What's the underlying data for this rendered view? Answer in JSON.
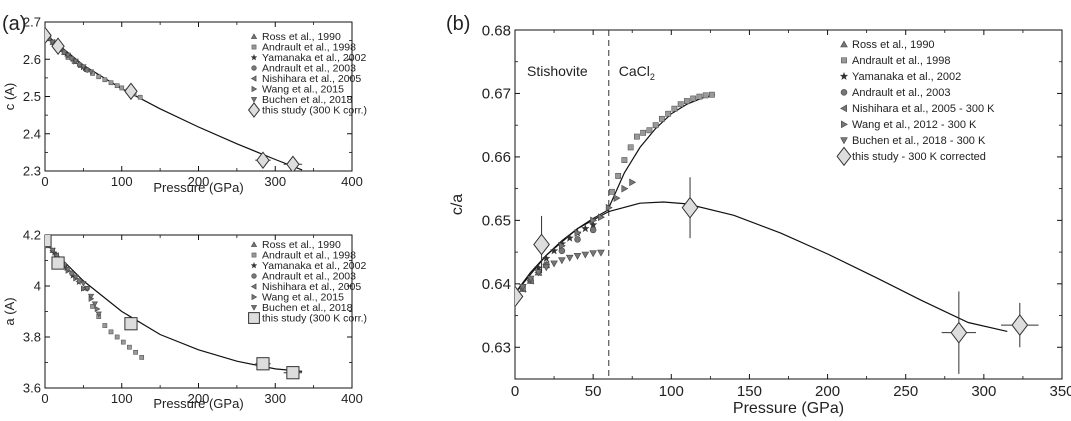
{
  "chart_data": [
    {
      "panel_label": "(a)",
      "type": "scatter",
      "xlabel": "Pressure (GPa)",
      "ylabel": "c (A)",
      "xlim": [
        0,
        400
      ],
      "ylim": [
        2.3,
        2.7
      ],
      "x_ticks": [
        0,
        100,
        200,
        300,
        400
      ],
      "y_ticks": [
        2.3,
        2.4,
        2.5,
        2.6,
        2.7
      ],
      "x_tick_labels": [
        "0",
        "100",
        "200",
        "300",
        "400"
      ],
      "y_tick_labels": [
        "2.3",
        "2.4",
        "2.5",
        "2.6",
        "2.7"
      ],
      "legend_position": "top-right",
      "series": [
        {
          "name": "Ross et al., 1990",
          "marker": "triangle-up",
          "x": [
            0,
            5,
            10,
            15,
            20,
            25
          ],
          "y": [
            2.665,
            2.655,
            2.645,
            2.635,
            2.626,
            2.618
          ]
        },
        {
          "name": "Andrault et al., 1998",
          "marker": "square-small",
          "x": [
            30,
            38,
            46,
            54,
            62,
            70,
            78,
            86,
            94,
            100,
            108,
            116,
            124
          ],
          "y": [
            2.605,
            2.594,
            2.583,
            2.572,
            2.562,
            2.553,
            2.545,
            2.537,
            2.529,
            2.523,
            2.515,
            2.507,
            2.498
          ]
        },
        {
          "name": "Yamanaka et al., 2002",
          "marker": "star",
          "x": [
            12,
            20,
            28,
            36,
            44,
            52
          ],
          "y": [
            2.642,
            2.628,
            2.614,
            2.6,
            2.587,
            2.575
          ]
        },
        {
          "name": "Andrault et al., 2003",
          "marker": "circle",
          "x": [
            15,
            25,
            35,
            45,
            55
          ],
          "y": [
            2.637,
            2.619,
            2.602,
            2.586,
            2.571
          ]
        },
        {
          "name": "Nishihara et al., 2005",
          "marker": "triangle-left",
          "x": [
            5,
            10,
            15,
            20
          ],
          "y": [
            2.655,
            2.646,
            2.637,
            2.628
          ]
        },
        {
          "name": "Wang et al., 2015",
          "marker": "triangle-right",
          "x": [
            20,
            30,
            40,
            50
          ],
          "y": [
            2.627,
            2.61,
            2.594,
            2.579
          ]
        },
        {
          "name": "Buchen et al., 2018",
          "marker": "triangle-down",
          "x": [
            10,
            20,
            30,
            40,
            50,
            60
          ],
          "y": [
            2.646,
            2.628,
            2.611,
            2.595,
            2.58,
            2.566
          ]
        },
        {
          "name": "this study (300 K corr.)",
          "marker": "diamond-open",
          "x": [
            0,
            17,
            112,
            284,
            323
          ],
          "y": [
            2.664,
            2.635,
            2.514,
            2.329,
            2.318
          ],
          "x_err": [
            0,
            3,
            5,
            10,
            12
          ],
          "y_err": [
            0,
            0.008,
            0.012,
            0.018,
            0.015
          ]
        }
      ],
      "fit": {
        "x": [
          0,
          50,
          100,
          150,
          200,
          250,
          300,
          335
        ],
        "y": [
          2.668,
          2.584,
          2.521,
          2.467,
          2.418,
          2.373,
          2.331,
          2.303
        ]
      }
    },
    {
      "type": "scatter",
      "xlabel": "Pressure (GPa)",
      "ylabel": "a (A)",
      "xlim": [
        0,
        400
      ],
      "ylim": [
        3.6,
        4.2
      ],
      "x_ticks": [
        0,
        100,
        200,
        300,
        400
      ],
      "y_ticks": [
        3.6,
        3.8,
        4.0,
        4.2
      ],
      "x_tick_labels": [
        "0",
        "100",
        "200",
        "300",
        "400"
      ],
      "y_tick_labels": [
        "3.6",
        "3.8",
        "4",
        "4.2"
      ],
      "legend_position": "top-right",
      "series": [
        {
          "name": "Ross et al., 1990",
          "marker": "triangle-up",
          "x": [
            0,
            5,
            10,
            15,
            20,
            25
          ],
          "y": [
            4.178,
            4.158,
            4.139,
            4.12,
            4.102,
            4.085
          ]
        },
        {
          "name": "Andrault et al., 1998",
          "marker": "square-small",
          "x": [
            62,
            70,
            78,
            86,
            94,
            102,
            110,
            118,
            126
          ],
          "y": [
            3.92,
            3.88,
            3.845,
            3.82,
            3.8,
            3.78,
            3.76,
            3.74,
            3.72
          ]
        },
        {
          "name": "Yamanaka et al., 2002",
          "marker": "star",
          "x": [
            12,
            20,
            28,
            36,
            44,
            52
          ],
          "y": [
            4.13,
            4.1,
            4.07,
            4.04,
            4.015,
            3.99
          ]
        },
        {
          "name": "Andrault et al., 2003",
          "marker": "circle",
          "x": [
            15,
            25,
            35,
            45,
            55
          ],
          "y": [
            4.12,
            4.085,
            4.05,
            4.02,
            3.99
          ]
        },
        {
          "name": "Nishihara et al., 2005",
          "marker": "triangle-left",
          "x": [
            5,
            10,
            15,
            20
          ],
          "y": [
            4.158,
            4.139,
            4.12,
            4.102
          ]
        },
        {
          "name": "Wang et al., 2015",
          "marker": "triangle-right",
          "x": [
            30,
            40,
            50,
            60,
            68
          ],
          "y": [
            4.06,
            4.03,
            3.99,
            3.95,
            3.91
          ]
        },
        {
          "name": "Buchen et al., 2018",
          "marker": "triangle-down",
          "x": [
            10,
            20,
            30,
            40,
            50,
            55,
            60,
            65,
            70
          ],
          "y": [
            4.14,
            4.1,
            4.065,
            4.035,
            4.01,
            3.99,
            3.96,
            3.93,
            3.89
          ]
        },
        {
          "name": "this study (300 K corr.)",
          "marker": "square-open",
          "x": [
            0,
            17,
            112,
            284,
            323
          ],
          "y": [
            4.178,
            4.09,
            3.852,
            3.695,
            3.66
          ],
          "x_err": [
            0,
            3,
            5,
            10,
            12
          ],
          "y_err": [
            0,
            0.01,
            0.012,
            0.02,
            0.015
          ]
        }
      ],
      "fit": {
        "x": [
          0,
          50,
          100,
          150,
          200,
          250,
          300,
          335
        ],
        "y": [
          4.17,
          4.02,
          3.9,
          3.81,
          3.75,
          3.705,
          3.675,
          3.665
        ]
      }
    },
    {
      "panel_label": "(b)",
      "type": "scatter",
      "xlabel": "Pressure (GPa)",
      "ylabel": "c/a",
      "xlim": [
        0,
        350
      ],
      "ylim": [
        0.625,
        0.68
      ],
      "x_ticks": [
        0,
        50,
        100,
        150,
        200,
        250,
        300,
        350
      ],
      "y_ticks": [
        0.63,
        0.64,
        0.65,
        0.66,
        0.67,
        0.68
      ],
      "x_tick_labels": [
        "0",
        "50",
        "100",
        "150",
        "200",
        "250",
        "300",
        "350"
      ],
      "y_tick_labels": [
        "0.63",
        "0.64",
        "0.65",
        "0.66",
        "0.67",
        "0.68"
      ],
      "legend_position": "top-right",
      "region_labels": [
        "Stishovite",
        "CaCl",
        "2"
      ],
      "transition_pressure": 60,
      "series": [
        {
          "name": "Ross et al., 1990",
          "marker": "triangle-up",
          "x": [
            0,
            5,
            10,
            15,
            20
          ],
          "y": [
            0.638,
            0.6392,
            0.6405,
            0.6418,
            0.643
          ]
        },
        {
          "name": "Andrault et al., 1998",
          "marker": "square-small",
          "x": [
            62,
            66,
            70,
            74,
            78,
            82,
            86,
            90,
            94,
            98,
            102,
            106,
            110,
            114,
            118,
            122,
            126
          ],
          "y": [
            0.6545,
            0.657,
            0.6595,
            0.6615,
            0.6632,
            0.6638,
            0.6642,
            0.665,
            0.666,
            0.6668,
            0.6676,
            0.6683,
            0.6688,
            0.6692,
            0.6695,
            0.6697,
            0.6698
          ]
        },
        {
          "name": "Yamanaka et al., 2002",
          "marker": "star",
          "x": [
            15,
            20,
            25,
            30,
            35,
            40,
            45,
            50
          ],
          "y": [
            0.6425,
            0.644,
            0.6452,
            0.6463,
            0.6472,
            0.648,
            0.6487,
            0.6493
          ]
        },
        {
          "name": "Andrault et al., 2003",
          "marker": "circle",
          "x": [
            10,
            20,
            30,
            40,
            50
          ],
          "y": [
            0.6405,
            0.643,
            0.6452,
            0.647,
            0.6485
          ]
        },
        {
          "name": "Nishihara et al., 2005 - 300 K",
          "marker": "triangle-left",
          "x": [
            5,
            10,
            15,
            20
          ],
          "y": [
            0.6392,
            0.6405,
            0.6418,
            0.643
          ]
        },
        {
          "name": "Wang et al., 2012 - 300 K",
          "marker": "triangle-right",
          "x": [
            30,
            40,
            50,
            55,
            60,
            65,
            70,
            75
          ],
          "y": [
            0.646,
            0.648,
            0.65,
            0.6505,
            0.652,
            0.6535,
            0.655,
            0.656
          ]
        },
        {
          "name": "Buchen et al., 2018 - 300 K",
          "marker": "triangle-down",
          "x": [
            5,
            10,
            15,
            20,
            25,
            30,
            35,
            40,
            45,
            50,
            55
          ],
          "y": [
            0.6395,
            0.6408,
            0.6418,
            0.6426,
            0.6432,
            0.6437,
            0.6441,
            0.6444,
            0.6446,
            0.6448,
            0.6449
          ]
        },
        {
          "name": "this study - 300 K corrected",
          "marker": "diamond-open",
          "x": [
            0,
            17,
            112,
            284,
            323
          ],
          "y": [
            0.638,
            0.6462,
            0.652,
            0.6323,
            0.6335
          ],
          "x_err": [
            0,
            2,
            4,
            11,
            12
          ],
          "y_err": [
            0,
            0.0045,
            0.0048,
            0.0065,
            0.0035
          ]
        }
      ],
      "fits": [
        {
          "x": [
            0,
            10,
            20,
            30,
            40,
            50,
            60
          ],
          "y": [
            0.6385,
            0.6418,
            0.6445,
            0.6468,
            0.6487,
            0.6503,
            0.6517
          ]
        },
        {
          "x": [
            60,
            70,
            80,
            90,
            100,
            110,
            120,
            128
          ],
          "y": [
            0.652,
            0.6575,
            0.6615,
            0.6645,
            0.6668,
            0.6683,
            0.6693,
            0.6698
          ]
        },
        {
          "x": [
            0,
            20,
            40,
            60,
            80,
            95,
            110,
            140,
            170,
            200,
            230,
            260,
            290,
            315
          ],
          "y": [
            0.6385,
            0.6445,
            0.6487,
            0.6514,
            0.6527,
            0.6529,
            0.6526,
            0.6508,
            0.648,
            0.6447,
            0.6411,
            0.6374,
            0.6339,
            0.6325
          ]
        }
      ]
    }
  ]
}
